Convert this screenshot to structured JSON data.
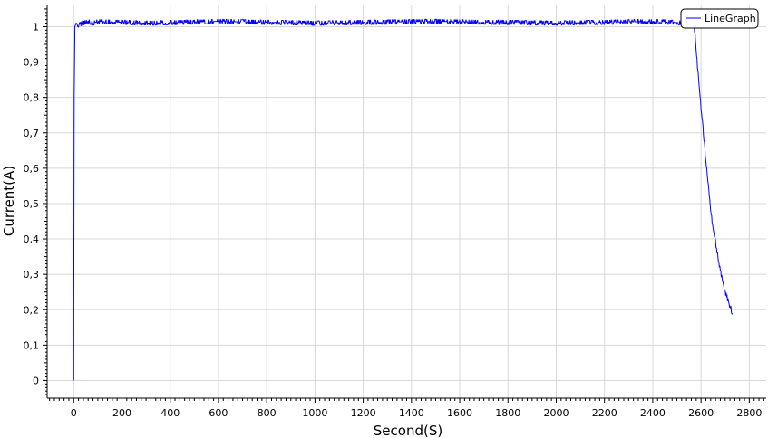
{
  "chart_data": {
    "type": "line",
    "xlabel": "Second(S)",
    "ylabel": "Current(A)",
    "xlim": [
      -110,
      2870
    ],
    "ylim": [
      -0.05,
      1.06
    ],
    "x_ticks": [
      0,
      200,
      400,
      600,
      800,
      1000,
      1200,
      1400,
      1600,
      1800,
      2000,
      2200,
      2400,
      2600,
      2800
    ],
    "y_ticks": [
      0,
      0.1,
      0.2,
      0.3,
      0.4,
      0.5,
      0.6,
      0.7,
      0.8,
      0.9,
      1
    ],
    "y_tick_labels": [
      "0",
      "0,1",
      "0,2",
      "0,3",
      "0,4",
      "0,5",
      "0,6",
      "0,7",
      "0,8",
      "0,9",
      "1"
    ],
    "grid": true,
    "legend": {
      "position": "top-right",
      "color": "#0000ff"
    },
    "series": [
      {
        "name": "LineGraph",
        "color": "#0000ff",
        "x": [
          0,
          2,
          5,
          10,
          20,
          40,
          60,
          80,
          100,
          300,
          600,
          1000,
          1500,
          2000,
          2400,
          2550,
          2570,
          2575,
          2580,
          2585,
          2590,
          2600,
          2610,
          2620,
          2630,
          2640,
          2650,
          2660,
          2670,
          2680,
          2690,
          2700,
          2710,
          2720,
          2730
        ],
        "y": [
          0,
          0.8,
          1.0,
          1.01,
          1.005,
          1.01,
          1.015,
          1.01,
          1.015,
          1.01,
          1.015,
          1.01,
          1.015,
          1.01,
          1.015,
          1.01,
          1.01,
          0.98,
          0.93,
          0.89,
          0.85,
          0.77,
          0.7,
          0.62,
          0.55,
          0.48,
          0.43,
          0.39,
          0.35,
          0.31,
          0.28,
          0.25,
          0.23,
          0.21,
          0.19
        ]
      }
    ]
  }
}
